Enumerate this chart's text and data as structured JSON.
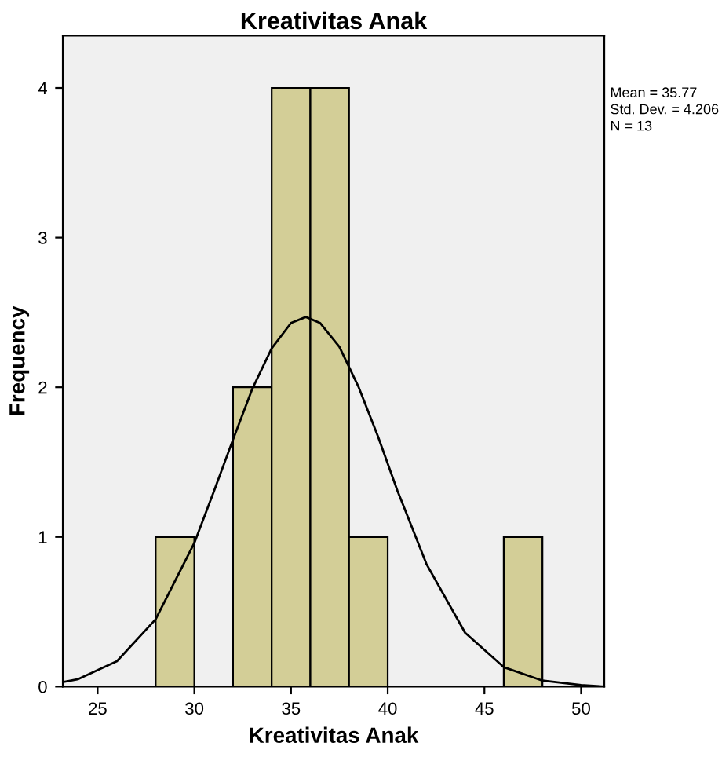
{
  "chart_data": {
    "type": "histogram",
    "title": "Kreativitas Anak",
    "xlabel": "Kreativitas Anak",
    "ylabel": "Frequency",
    "bins": [
      28,
      30,
      32,
      34,
      36,
      38,
      40,
      42,
      44,
      46,
      48
    ],
    "values": [
      1,
      0,
      2,
      4,
      4,
      1,
      0,
      0,
      0,
      1
    ],
    "color": "#d3ce97",
    "series": [
      {
        "type": "line",
        "color": "#000000",
        "x": [
          23.2,
          24,
          26,
          28,
          30,
          31,
          32,
          33,
          34,
          35,
          35.77,
          36.5,
          37.5,
          38.5,
          39.5,
          40.5,
          42,
          44,
          46,
          48,
          50,
          51.2
        ],
        "values": [
          0.03,
          0.05,
          0.17,
          0.45,
          0.96,
          1.3,
          1.65,
          1.99,
          2.26,
          2.43,
          2.47,
          2.43,
          2.27,
          2.0,
          1.67,
          1.31,
          0.82,
          0.36,
          0.13,
          0.04,
          0.01,
          0.0
        ]
      }
    ],
    "annotations": [
      "Mean = 35.77",
      "Std. Dev. = 4.206",
      "N = 13"
    ],
    "xlim": [
      23.2,
      51.2
    ],
    "ylim": [
      0,
      4.35
    ],
    "xticks": [
      25,
      30,
      35,
      40,
      45,
      50
    ],
    "yticks": [
      0,
      1,
      2,
      3,
      4
    ],
    "grid": false,
    "legend": false
  }
}
